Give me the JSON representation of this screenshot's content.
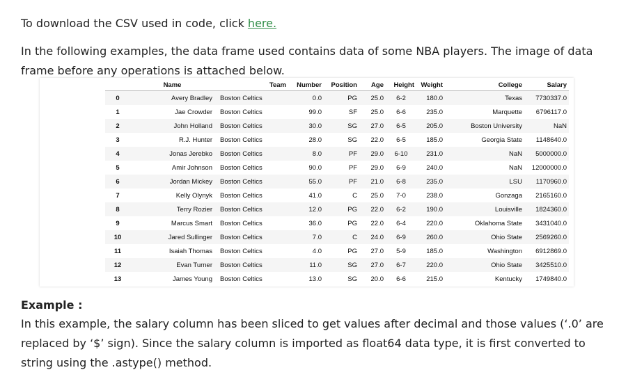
{
  "intro": {
    "download_text": "To download the CSV used in code, click ",
    "link_text": "here."
  },
  "description": "In the following examples, the data frame used contains data of some NBA players. The image of data frame before any operations is attached below.",
  "dataframe": {
    "columns": [
      "",
      "Name",
      "Team",
      "Number",
      "Position",
      "Age",
      "Height",
      "Weight",
      "College",
      "Salary"
    ],
    "rows": [
      [
        "0",
        "Avery Bradley",
        "Boston Celtics",
        "0.0",
        "PG",
        "25.0",
        "6-2",
        "180.0",
        "Texas",
        "7730337.0"
      ],
      [
        "1",
        "Jae Crowder",
        "Boston Celtics",
        "99.0",
        "SF",
        "25.0",
        "6-6",
        "235.0",
        "Marquette",
        "6796117.0"
      ],
      [
        "2",
        "John Holland",
        "Boston Celtics",
        "30.0",
        "SG",
        "27.0",
        "6-5",
        "205.0",
        "Boston University",
        "NaN"
      ],
      [
        "3",
        "R.J. Hunter",
        "Boston Celtics",
        "28.0",
        "SG",
        "22.0",
        "6-5",
        "185.0",
        "Georgia State",
        "1148640.0"
      ],
      [
        "4",
        "Jonas Jerebko",
        "Boston Celtics",
        "8.0",
        "PF",
        "29.0",
        "6-10",
        "231.0",
        "NaN",
        "5000000.0"
      ],
      [
        "5",
        "Amir Johnson",
        "Boston Celtics",
        "90.0",
        "PF",
        "29.0",
        "6-9",
        "240.0",
        "NaN",
        "12000000.0"
      ],
      [
        "6",
        "Jordan Mickey",
        "Boston Celtics",
        "55.0",
        "PF",
        "21.0",
        "6-8",
        "235.0",
        "LSU",
        "1170960.0"
      ],
      [
        "7",
        "Kelly Olynyk",
        "Boston Celtics",
        "41.0",
        "C",
        "25.0",
        "7-0",
        "238.0",
        "Gonzaga",
        "2165160.0"
      ],
      [
        "8",
        "Terry Rozier",
        "Boston Celtics",
        "12.0",
        "PG",
        "22.0",
        "6-2",
        "190.0",
        "Louisville",
        "1824360.0"
      ],
      [
        "9",
        "Marcus Smart",
        "Boston Celtics",
        "36.0",
        "PG",
        "22.0",
        "6-4",
        "220.0",
        "Oklahoma State",
        "3431040.0"
      ],
      [
        "10",
        "Jared Sullinger",
        "Boston Celtics",
        "7.0",
        "C",
        "24.0",
        "6-9",
        "260.0",
        "Ohio State",
        "2569260.0"
      ],
      [
        "11",
        "Isaiah Thomas",
        "Boston Celtics",
        "4.0",
        "PG",
        "27.0",
        "5-9",
        "185.0",
        "Washington",
        "6912869.0"
      ],
      [
        "12",
        "Evan Turner",
        "Boston Celtics",
        "11.0",
        "SG",
        "27.0",
        "6-7",
        "220.0",
        "Ohio State",
        "3425510.0"
      ],
      [
        "13",
        "James Young",
        "Boston Celtics",
        "13.0",
        "SG",
        "20.0",
        "6-6",
        "215.0",
        "Kentucky",
        "1749840.0"
      ]
    ]
  },
  "example": {
    "heading": "Example :",
    "body": "In this example, the salary column has been sliced to get values after decimal and those values (‘.0’ are replaced by ‘$’ sign). Since the salary column is imported as float64 data type, it is first converted to string using the .astype() method."
  },
  "colors": {
    "link": "#2f8d46"
  }
}
